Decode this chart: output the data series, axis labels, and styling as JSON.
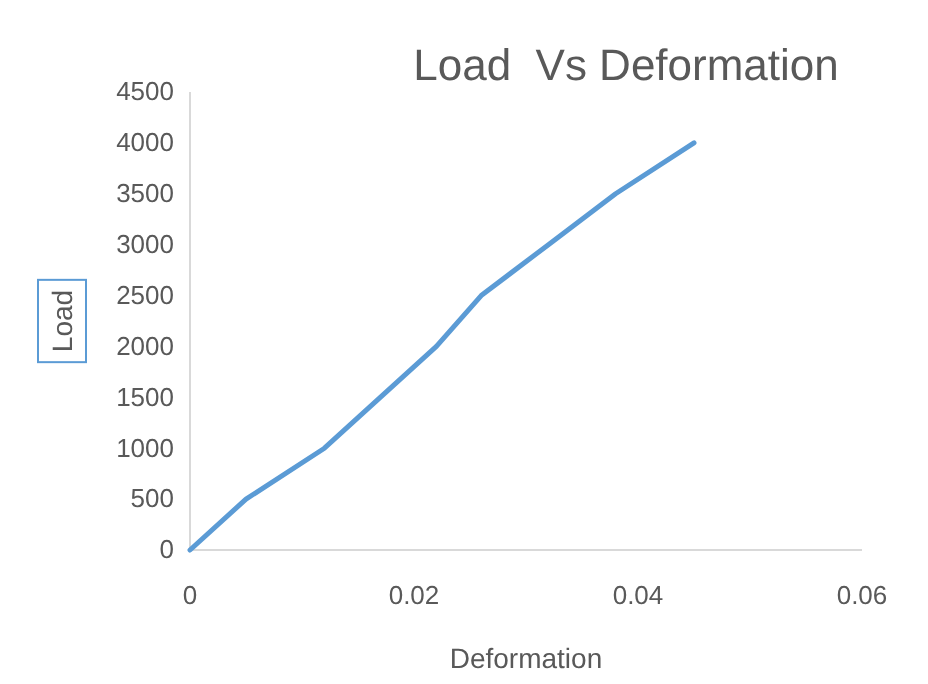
{
  "chart_data": {
    "type": "line",
    "title": "Load  Vs Deformation",
    "xlabel": "Deformation",
    "ylabel": "Load",
    "x": [
      0,
      0.005,
      0.012,
      0.022,
      0.026,
      0.032,
      0.038,
      0.045
    ],
    "series": [
      {
        "color": "#5b9bd5",
        "values": [
          0,
          500,
          1000,
          2000,
          2500,
          3000,
          3500,
          4000
        ]
      }
    ],
    "xlim": [
      0,
      0.06
    ],
    "xticks": [
      0,
      0.02,
      0.04,
      0.06
    ],
    "ylim": [
      0,
      4500
    ],
    "yticks": [
      0,
      500,
      1000,
      1500,
      2000,
      2500,
      3000,
      3500,
      4000,
      4500
    ],
    "grid": false,
    "marker": "none",
    "line_style": "solid"
  }
}
